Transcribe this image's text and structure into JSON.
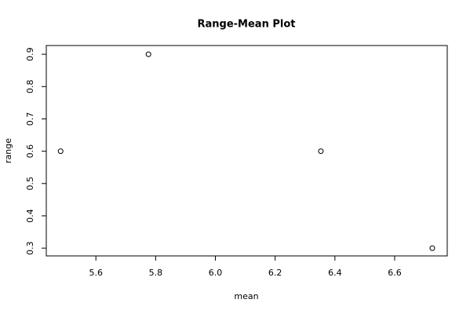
{
  "chart_data": {
    "type": "scatter",
    "title": "Range-Mean Plot",
    "x_label": "mean",
    "y_label": "range",
    "x": [
      5.482,
      5.776,
      6.353,
      6.726
    ],
    "values": [
      0.6,
      0.9,
      0.6,
      0.3
    ],
    "color": "#000000",
    "xlim": [
      5.434,
      6.776
    ],
    "ylim": [
      0.276,
      0.927
    ],
    "xticks": [
      5.6,
      5.8,
      {
        "value": 6,
        "label": "6.0"
      },
      6.2,
      6.4,
      6.6
    ],
    "yticks": [
      0.3,
      0.4,
      0.5,
      0.6,
      0.7,
      0.8,
      0.9
    ],
    "grid": false
  }
}
